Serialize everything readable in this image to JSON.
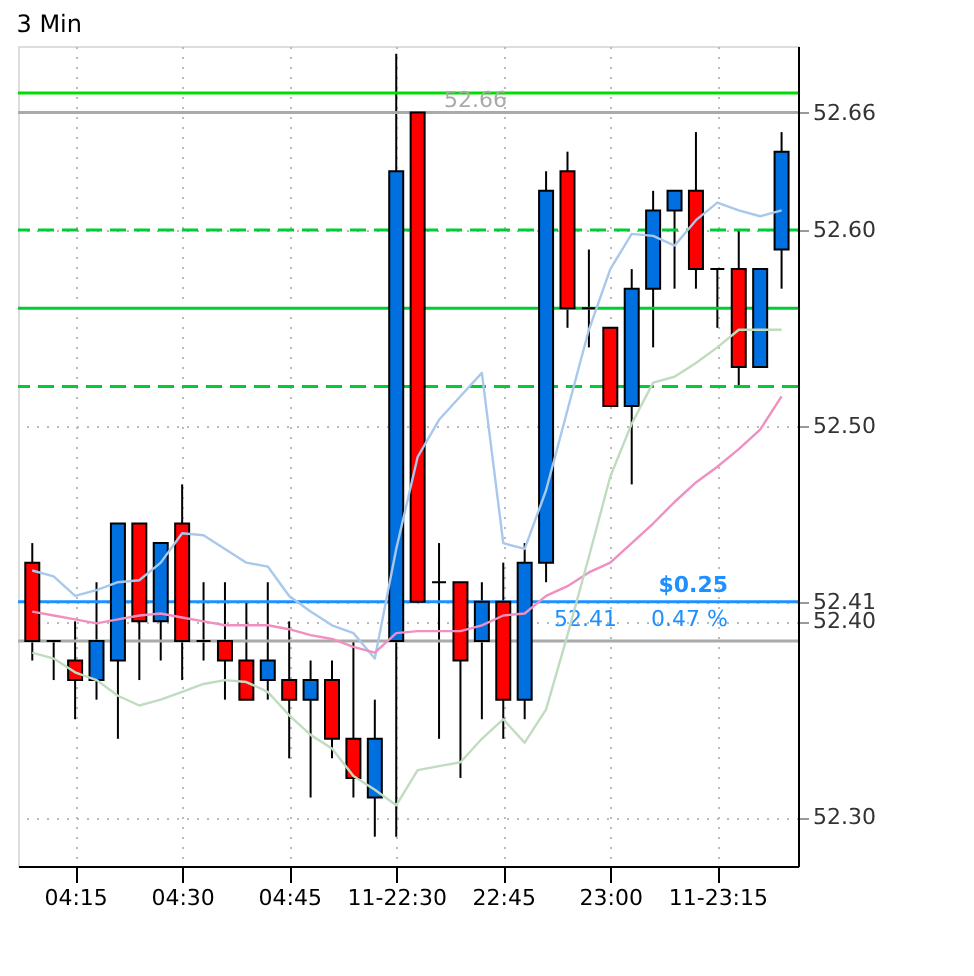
{
  "chart_data": {
    "type": "candlestick",
    "title": "3 Min",
    "categories": [
      null,
      null,
      "04:15",
      null,
      null,
      null,
      null,
      "04:30",
      null,
      null,
      null,
      null,
      "04:45",
      null,
      null,
      null,
      null,
      "11-22:30",
      null,
      null,
      null,
      null,
      "22:45",
      null,
      null,
      null,
      null,
      "23:00",
      null,
      null,
      null,
      null,
      "11-23:15",
      null,
      null,
      null
    ],
    "ohlc": [
      [
        52.43,
        52.44,
        52.38,
        52.39
      ],
      [
        52.39,
        52.39,
        52.37,
        52.39
      ],
      [
        52.38,
        52.4,
        52.35,
        52.37
      ],
      [
        52.37,
        52.42,
        52.36,
        52.39
      ],
      [
        52.38,
        52.45,
        52.34,
        52.45
      ],
      [
        52.45,
        52.45,
        52.37,
        52.4
      ],
      [
        52.4,
        52.44,
        52.38,
        52.44
      ],
      [
        52.45,
        52.47,
        52.37,
        52.39
      ],
      [
        52.39,
        52.42,
        52.38,
        52.39
      ],
      [
        52.39,
        52.42,
        52.36,
        52.38
      ],
      [
        52.38,
        52.41,
        52.36,
        52.36
      ],
      [
        52.37,
        52.42,
        52.36,
        52.38
      ],
      [
        52.37,
        52.4,
        52.33,
        52.36
      ],
      [
        52.36,
        52.38,
        52.31,
        52.37
      ],
      [
        52.37,
        52.38,
        52.33,
        52.34
      ],
      [
        52.34,
        52.39,
        52.31,
        52.32
      ],
      [
        52.31,
        52.36,
        52.29,
        52.34
      ],
      [
        52.39,
        52.69,
        52.29,
        52.63
      ],
      [
        52.66,
        52.66,
        52.41,
        52.41
      ],
      [
        52.42,
        52.44,
        52.34,
        52.42
      ],
      [
        52.42,
        52.42,
        52.32,
        52.38
      ],
      [
        52.39,
        52.42,
        52.35,
        52.41
      ],
      [
        52.41,
        52.43,
        52.34,
        52.36
      ],
      [
        52.36,
        52.44,
        52.35,
        52.43
      ],
      [
        52.43,
        52.63,
        52.42,
        52.62
      ],
      [
        52.63,
        52.64,
        52.55,
        52.56
      ],
      [
        52.56,
        52.59,
        52.54,
        52.56
      ],
      [
        52.55,
        52.55,
        52.51,
        52.51
      ],
      [
        52.51,
        52.58,
        52.47,
        52.57
      ],
      [
        52.57,
        52.62,
        52.54,
        52.61
      ],
      [
        52.61,
        52.62,
        52.57,
        52.62
      ],
      [
        52.62,
        52.65,
        52.57,
        52.58
      ],
      [
        52.58,
        52.58,
        52.55,
        52.58
      ],
      [
        52.58,
        52.6,
        52.52,
        52.53
      ],
      [
        52.53,
        52.58,
        52.53,
        52.58
      ],
      [
        52.59,
        52.65,
        52.57,
        52.64
      ]
    ],
    "colors": [
      "#ff0000",
      "#000000",
      "#ff0000",
      "#0070e0",
      "#0070e0",
      "#ff0000",
      "#0070e0",
      "#ff0000",
      "#000000",
      "#ff0000",
      "#ff0000",
      "#0070e0",
      "#ff0000",
      "#0070e0",
      "#ff0000",
      "#ff0000",
      "#0070e0",
      "#0070e0",
      "#ff0000",
      "#000000",
      "#ff0000",
      "#0070e0",
      "#ff0000",
      "#0070e0",
      "#0070e0",
      "#ff0000",
      "#000000",
      "#ff0000",
      "#0070e0",
      "#0070e0",
      "#0070e0",
      "#ff0000",
      "#000000",
      "#ff0000",
      "#0070e0",
      "#0070e0"
    ],
    "series": [
      {
        "type": "line",
        "color": "#a8c8ec",
        "values": [
          52.426,
          52.423,
          52.413,
          52.416,
          52.42,
          52.421,
          52.43,
          52.445,
          52.444,
          52.437,
          52.43,
          52.428,
          52.413,
          52.405,
          52.398,
          52.394,
          52.381,
          52.437,
          52.484,
          52.503,
          52.515,
          52.527,
          52.44,
          52.437,
          52.467,
          52.508,
          52.549,
          52.58,
          52.598,
          52.597,
          52.592,
          52.605,
          52.614,
          52.61,
          52.607,
          52.61
        ]
      },
      {
        "type": "line",
        "color": "#f090c0",
        "values": [
          52.405,
          52.403,
          52.401,
          52.399,
          52.401,
          52.403,
          52.404,
          52.402,
          52.4,
          52.398,
          52.398,
          52.398,
          52.396,
          52.393,
          52.391,
          52.387,
          52.384,
          52.394,
          52.395,
          52.395,
          52.395,
          52.398,
          52.403,
          52.404,
          52.413,
          52.418,
          52.425,
          52.43,
          52.44,
          52.45,
          52.461,
          52.471,
          52.479,
          52.488,
          52.498,
          52.515
        ]
      },
      {
        "type": "line",
        "color": "#c0dcc0",
        "values": [
          52.384,
          52.381,
          52.374,
          52.37,
          52.362,
          52.357,
          52.36,
          52.364,
          52.368,
          52.37,
          52.369,
          52.364,
          52.352,
          52.342,
          52.335,
          52.321,
          52.314,
          52.306,
          52.324,
          52.326,
          52.328,
          52.34,
          52.35,
          52.338,
          52.355,
          52.393,
          52.433,
          52.474,
          52.501,
          52.522,
          52.525,
          52.532,
          52.54,
          52.549,
          52.549,
          52.549
        ]
      }
    ],
    "ylim": [
      52.275,
      52.694
    ],
    "yticks": [
      {
        "value": 52.3,
        "label": "52.30"
      },
      {
        "value": 52.4,
        "label": "52.40"
      },
      {
        "value": 52.5,
        "label": "52.50"
      },
      {
        "value": 52.6,
        "label": "52.60"
      },
      52.66,
      52.41
    ],
    "grid": true,
    "ref_lines": [
      {
        "axis": "y",
        "value": 52.67,
        "color": "#00dd00",
        "line_style": "solid"
      },
      {
        "axis": "y",
        "value": 52.6,
        "color": "#00cc33",
        "line_style": "dashed"
      },
      {
        "axis": "y",
        "value": 52.56,
        "color": "#00cc33",
        "line_style": "solid"
      },
      {
        "axis": "y",
        "value": 52.52,
        "color": "#00cc33",
        "line_style": "dashed"
      },
      {
        "axis": "y",
        "value": 52.66,
        "label": "52.66",
        "color": "#aaaaaa",
        "line_style": "solid"
      },
      {
        "axis": "y",
        "value": 52.41,
        "label": "52.41",
        "color": "#1e90ff",
        "line_style": "solid"
      },
      {
        "axis": "y",
        "value": 52.39,
        "color": "#aaaaaa",
        "line_style": "solid"
      }
    ],
    "annotations": [
      "$0.25",
      "0.47 %"
    ]
  }
}
